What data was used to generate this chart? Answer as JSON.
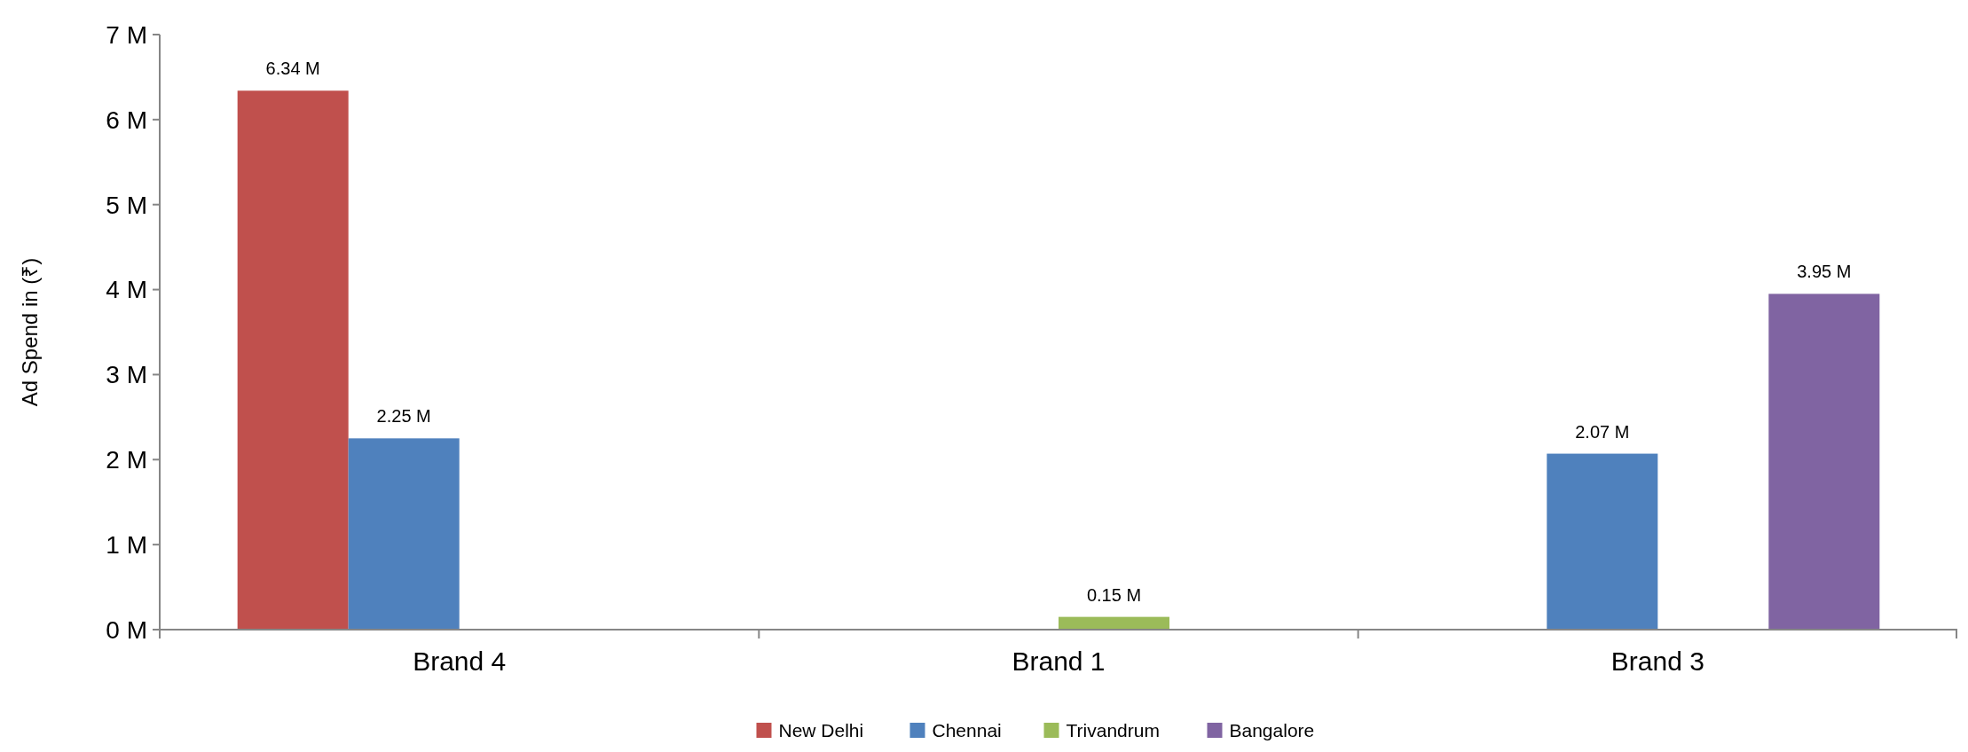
{
  "chart_data": {
    "type": "bar",
    "ylabel": "Ad Spend in (₹)",
    "categories": [
      "Brand 4",
      "Brand 1",
      "Brand 3"
    ],
    "series": [
      {
        "name": "New Delhi",
        "color": "#c0504d",
        "values": [
          6.34,
          null,
          null
        ],
        "value_labels": [
          "6.34 M",
          null,
          null
        ]
      },
      {
        "name": "Chennai",
        "color": "#4f81bd",
        "values": [
          2.25,
          null,
          2.07
        ],
        "value_labels": [
          "2.25 M",
          null,
          "2.07 M"
        ]
      },
      {
        "name": "Trivandrum",
        "color": "#9bbb59",
        "values": [
          null,
          0.15,
          null
        ],
        "value_labels": [
          null,
          "0.15 M",
          null
        ]
      },
      {
        "name": "Bangalore",
        "color": "#8064a2",
        "values": [
          null,
          null,
          3.95
        ],
        "value_labels": [
          null,
          null,
          "3.95 M"
        ]
      }
    ],
    "ylim": [
      0,
      7
    ],
    "yticks": [
      {
        "value": 0,
        "label": "0 M"
      },
      {
        "value": 1,
        "label": "1 M"
      },
      {
        "value": 2,
        "label": "2 M"
      },
      {
        "value": 3,
        "label": "3 M"
      },
      {
        "value": 4,
        "label": "4 M"
      },
      {
        "value": 5,
        "label": "5 M"
      },
      {
        "value": 6,
        "label": "6 M"
      },
      {
        "value": 7,
        "label": "7 M"
      }
    ],
    "legend": "bottom"
  }
}
